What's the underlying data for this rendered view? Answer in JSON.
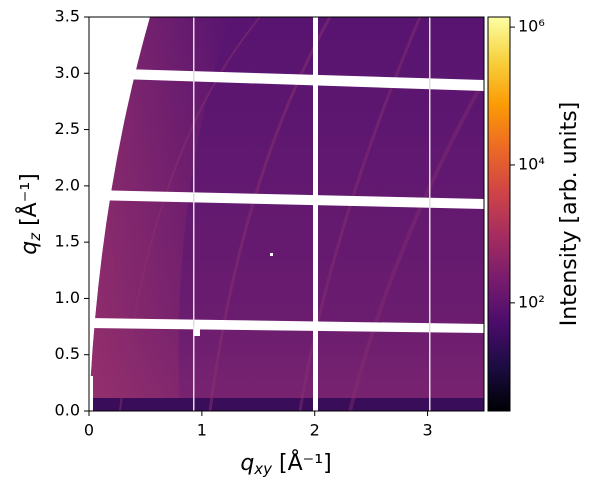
{
  "chart_data": {
    "type": "image",
    "x_label": "qxy [Å⁻¹]",
    "y_label": "qz [Å⁻¹]",
    "xlim": [
      0,
      3.5
    ],
    "ylim": [
      0,
      3.5
    ],
    "xticks": [
      0,
      1,
      2,
      3
    ],
    "yticks": [
      {
        "value": 0,
        "label": "0.0"
      },
      0.5,
      {
        "value": 1,
        "label": "1.0"
      },
      1.5,
      {
        "value": 2,
        "label": "2.0"
      },
      2.5,
      {
        "value": 3,
        "label": "3.0"
      },
      3.5
    ],
    "colorbar": {
      "label": "Intensity [arb. units]",
      "scale": "log",
      "colormap": "inferno",
      "lim": [
        2.7,
        1400000
      ],
      "ticks": [
        {
          "value": 100,
          "label": "10²"
        },
        {
          "value": 10000,
          "label": "10⁴"
        },
        {
          "value": 1000000,
          "label": "10⁶"
        }
      ]
    }
  }
}
